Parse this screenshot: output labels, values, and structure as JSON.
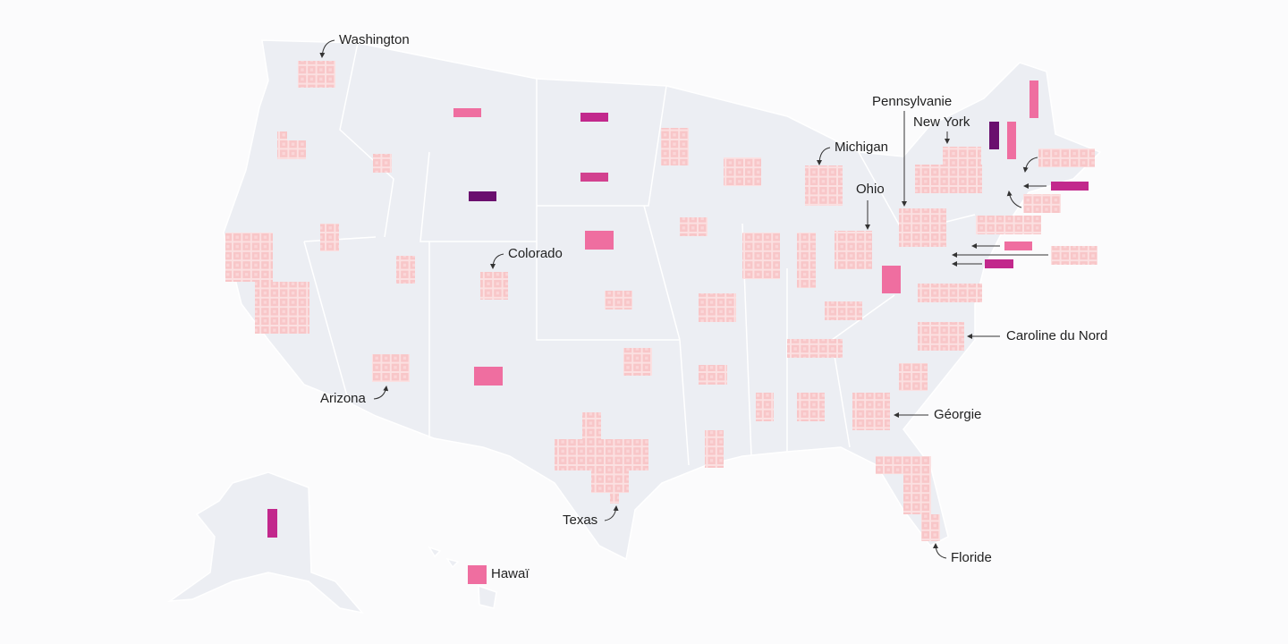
{
  "labels": [
    "Washington",
    "Colorado",
    "Arizona",
    "Texas",
    "Hawaï",
    "Michigan",
    "Ohio",
    "Pennsylvanie",
    "New York",
    "Caroline du Nord",
    "Géorgie",
    "Floride"
  ]
}
